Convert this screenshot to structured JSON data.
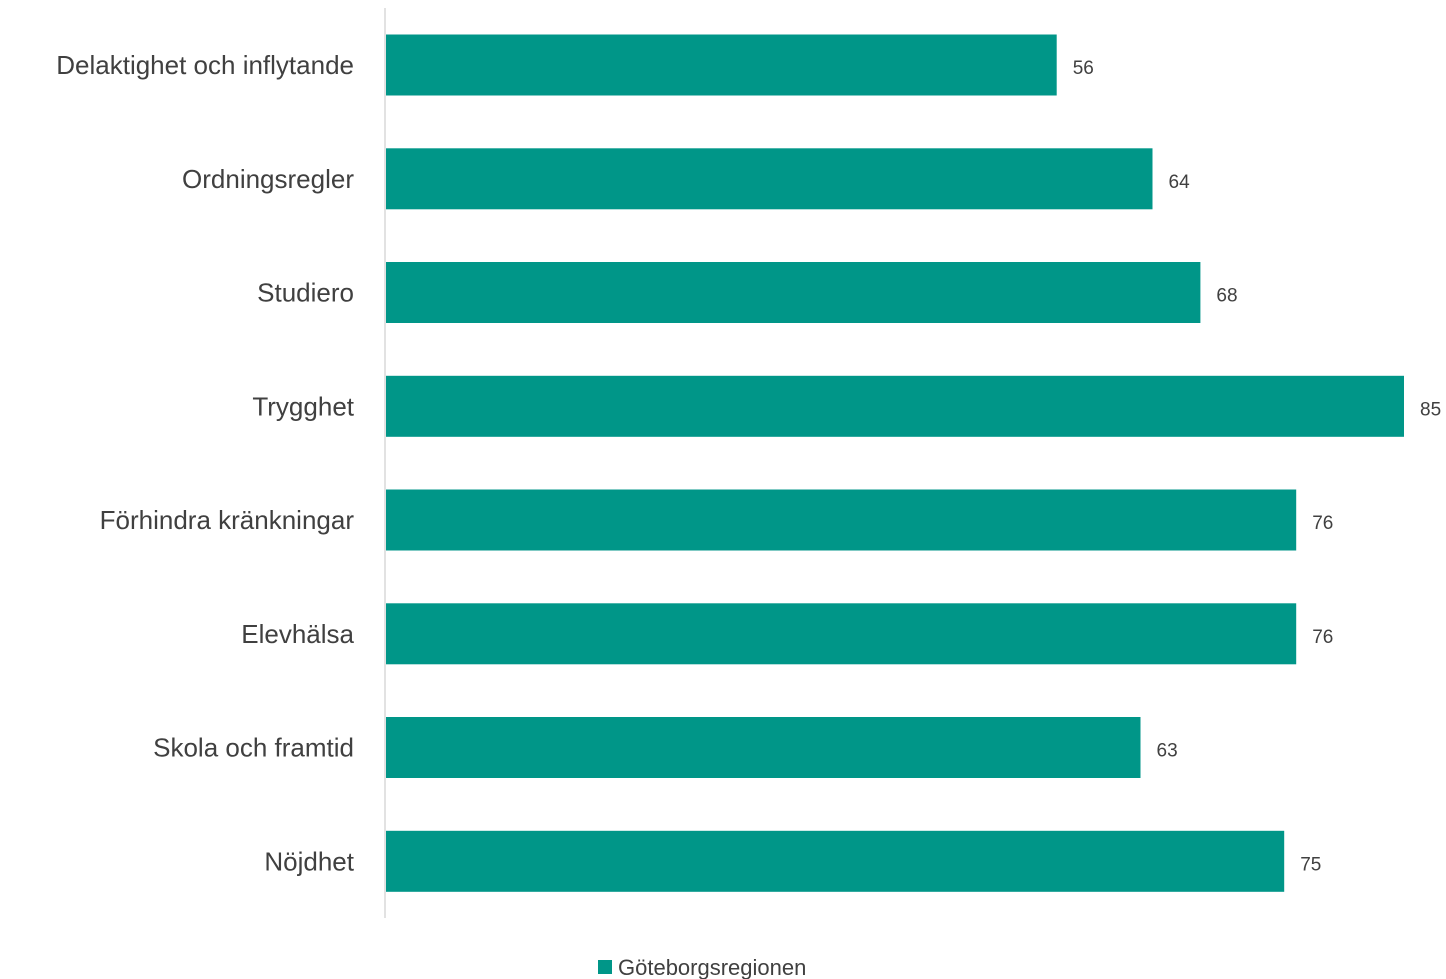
{
  "chart_data": {
    "type": "bar",
    "orientation": "horizontal",
    "categories": [
      "Delaktighet och inflytande",
      "Ordningsregler",
      "Studiero",
      "Trygghet",
      "Förhindra kränkningar",
      "Elevhälsa",
      "Skola och framtid",
      "Nöjdhet"
    ],
    "series": [
      {
        "name": "Göteborgsregionen",
        "values": [
          56,
          64,
          68,
          85,
          76,
          76,
          63,
          75
        ],
        "color": "#009688"
      }
    ],
    "value_labels": [
      "56",
      "64",
      "68",
      "85",
      "76",
      "76",
      "63",
      "75"
    ],
    "title": "",
    "xlabel": "",
    "ylabel": "",
    "xlim": [
      0,
      85
    ],
    "grid": false,
    "legend_position": "bottom-center"
  }
}
